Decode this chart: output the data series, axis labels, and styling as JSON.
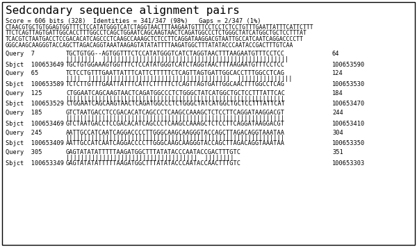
{
  "title": "Sedcondary sequence alignment pairs",
  "score_line": "Score = 606 bits (328)  Identities = 341/347 (98%)   Gaps = 2/347 (1%)",
  "reference_seq_lines": [
    "CTAACGTGCTGTGGAGTGGTTTCTCCATATGGGTCATCTAGGTAACTTTAAGAATGTTTCCTCCTCTCCTGTTTGAATTATTTCATTCTTT",
    "TTCTCAGTTAGTGATTGGCACCTTTGGCCTCAGCTGGAATCAGCAAGTAACTCAGATGGCCCTCTGGGCTATCATGGCTGCTCCTTTAT",
    "TCACGTCTAATGACCTCCGACACATCAGCCCTCAAGCCAAAGCTCTCCTTCAGGATAAGGACGTAATTGCCATCAATCAGGACCCCTT",
    "GGGCAAGCAAGGGTACCAGCTTAGACAGGTAAATAAGAGTATATATTTTAAGATGGCTTTATATACCCAATACCGACTTTGTCAA"
  ],
  "alignments": [
    {
      "query_label": "Query",
      "query_start": "7",
      "query_seq": "TGCTGTGG--AGTGGTTTCTCCATATGGGTCATCTAGGTAACTTTAAGAATGTTTCCTCC",
      "query_end": "64",
      "match_line": "||||||||  |||||||||||||||||||||||||||||||||||||||||||||||||||",
      "sbjct_label": "Sbjct",
      "sbjct_start": "100653649",
      "sbjct_seq": "TGCTGTGGAAAGTGGTTTCTCCATATGGGTCATCTAGGTAACTTTAAGAATGTTTCCTCC",
      "sbjct_end": "100653590"
    },
    {
      "query_label": "Query",
      "query_start": "65",
      "query_seq": "TCTCCTGTTTGAATTATTTCATTCTTTTTCTCAGTTAGTGATTGGCACCTTTGGCCTCAG",
      "query_end": "124",
      "match_line": "||||  |||||||||||||||||||||||||||||||||||||||  |||||||||||||||",
      "sbjct_label": "Sbjct",
      "sbjct_start": "100653589",
      "sbjct_seq": "TCTCTTGTTTGAATTATTTCATTCTTTTTCTCAGTTAGTGATTGGCAACTTTGGCCTCAG",
      "sbjct_end": "100653530"
    },
    {
      "query_label": "Query",
      "query_start": "125",
      "query_seq": "CTGGAATCAGCAAGTAACTCAGATGGCCCTCTGGGCTATCATGGCTGCTCCTTTATTCAC",
      "query_end": "184",
      "match_line": "||||||||||||||||||||||||||||||||||||||||||||||||||||||||||||",
      "sbjct_label": "Sbjct",
      "sbjct_start": "100653529",
      "sbjct_seq": "CTGGAATCAGCAAGTAACTCAGATGGCCCTCTGGGCTATCATGGCTGCTCCTTTATTCAT",
      "sbjct_end": "100653470"
    },
    {
      "query_label": "Query",
      "query_start": "185",
      "query_seq": "GTCTAATGACCTCCGACACATCAGCCCTCAAGCCAAAGCTCTCCTTCAGGATAAGGACGT",
      "query_end": "244",
      "match_line": "||||||||||||||||||||||||||||||||||||||||||||||||||||||||||||",
      "sbjct_label": "Sbjct",
      "sbjct_start": "100653469",
      "sbjct_seq": "GTCTAATGACCTCCGACACATCAGCCCTCAAGCCAAAGCTCTCCTTCAGGATAAGGACGT",
      "sbjct_end": "100653410"
    },
    {
      "query_label": "Query",
      "query_start": "245",
      "query_seq": "AATTGCCATCAATCAGGACCCCTTGGGCAAGCAAGGGTACCAGCTTAGACAGGTAAATAA",
      "query_end": "304",
      "match_line": "||||||||||||||||||||||||||||||||||||||||||||||||||||||||||||",
      "sbjct_label": "Sbjct",
      "sbjct_start": "100653409",
      "sbjct_seq": "AATTGCCATCAATCAGGACCCCTTGGGCAAGCAAGGGTACCAGCTTAGACAGGTAAATAA",
      "sbjct_end": "100653350"
    },
    {
      "query_label": "Query",
      "query_start": "305",
      "query_seq": "GAGTATATATTTTTAAGATGGCTTTATATACCCAATACCGACTTTGTC",
      "query_end": "351",
      "match_line": "||||||||||||||||||||||||||||||||||||  ||||||||",
      "sbjct_label": "Sbjct",
      "sbjct_start": "100653349",
      "sbjct_seq": "GAGTATATATTTTTAAGATGGCTTTATATACCCAATACCAACTTTGTC",
      "sbjct_end": "100653303"
    }
  ],
  "bg_color": "#ffffff",
  "box_color": "#000000",
  "text_color": "#000000",
  "title_fontsize": 11.5,
  "score_fontsize": 6.2,
  "ref_fontsize": 5.8,
  "align_fontsize": 6.2,
  "mono_font": "monospace",
  "fig_width": 6.0,
  "fig_height": 3.56,
  "dpi": 100
}
